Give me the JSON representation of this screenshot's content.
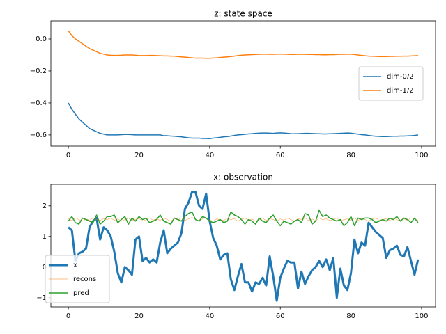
{
  "chart_data": [
    {
      "type": "line",
      "title": "z: state space",
      "x": [
        0,
        1,
        2,
        3,
        4,
        5,
        6,
        7,
        8,
        9,
        10,
        11,
        12,
        13,
        14,
        15,
        16,
        17,
        18,
        19,
        20,
        21,
        22,
        23,
        24,
        25,
        26,
        27,
        28,
        29,
        30,
        31,
        32,
        33,
        34,
        35,
        36,
        37,
        38,
        39,
        40,
        41,
        42,
        43,
        44,
        45,
        46,
        47,
        48,
        49,
        50,
        51,
        52,
        53,
        54,
        55,
        56,
        57,
        58,
        59,
        60,
        61,
        62,
        63,
        64,
        65,
        66,
        67,
        68,
        69,
        70,
        71,
        72,
        73,
        74,
        75,
        76,
        77,
        78,
        79,
        80,
        81,
        82,
        83,
        84,
        85,
        86,
        87,
        88,
        89,
        90,
        91,
        92,
        93,
        94,
        95,
        96,
        97,
        98,
        99
      ],
      "series": [
        {
          "name": "dim-0/2",
          "color": "#1f77b4",
          "linewidth": 1.5,
          "values": [
            -0.4,
            -0.44,
            -0.47,
            -0.5,
            -0.52,
            -0.54,
            -0.56,
            -0.57,
            -0.58,
            -0.59,
            -0.595,
            -0.6,
            -0.6,
            -0.6,
            -0.6,
            -0.598,
            -0.597,
            -0.597,
            -0.598,
            -0.6,
            -0.6,
            -0.6,
            -0.6,
            -0.6,
            -0.6,
            -0.6,
            -0.6,
            -0.605,
            -0.605,
            -0.607,
            -0.608,
            -0.61,
            -0.612,
            -0.615,
            -0.618,
            -0.62,
            -0.62,
            -0.62,
            -0.622,
            -0.622,
            -0.623,
            -0.62,
            -0.618,
            -0.615,
            -0.612,
            -0.61,
            -0.607,
            -0.603,
            -0.6,
            -0.598,
            -0.596,
            -0.594,
            -0.592,
            -0.59,
            -0.589,
            -0.588,
            -0.588,
            -0.589,
            -0.59,
            -0.588,
            -0.587,
            -0.588,
            -0.59,
            -0.592,
            -0.593,
            -0.592,
            -0.591,
            -0.59,
            -0.59,
            -0.591,
            -0.592,
            -0.593,
            -0.594,
            -0.594,
            -0.593,
            -0.592,
            -0.591,
            -0.59,
            -0.589,
            -0.588,
            -0.589,
            -0.592,
            -0.595,
            -0.598,
            -0.6,
            -0.603,
            -0.606,
            -0.608,
            -0.609,
            -0.61,
            -0.61,
            -0.609,
            -0.608,
            -0.608,
            -0.607,
            -0.607,
            -0.606,
            -0.605,
            -0.603,
            -0.6
          ]
        },
        {
          "name": "dim-1/2",
          "color": "#ff7f0e",
          "linewidth": 1.5,
          "values": [
            0.05,
            0.02,
            0.0,
            -0.015,
            -0.03,
            -0.045,
            -0.06,
            -0.07,
            -0.08,
            -0.09,
            -0.095,
            -0.1,
            -0.102,
            -0.103,
            -0.103,
            -0.102,
            -0.1,
            -0.1,
            -0.1,
            -0.102,
            -0.104,
            -0.104,
            -0.104,
            -0.103,
            -0.103,
            -0.104,
            -0.105,
            -0.106,
            -0.106,
            -0.107,
            -0.108,
            -0.11,
            -0.112,
            -0.114,
            -0.116,
            -0.118,
            -0.12,
            -0.12,
            -0.12,
            -0.121,
            -0.121,
            -0.119,
            -0.118,
            -0.116,
            -0.114,
            -0.112,
            -0.11,
            -0.107,
            -0.104,
            -0.102,
            -0.1,
            -0.099,
            -0.098,
            -0.097,
            -0.096,
            -0.095,
            -0.095,
            -0.096,
            -0.096,
            -0.095,
            -0.094,
            -0.095,
            -0.096,
            -0.097,
            -0.097,
            -0.096,
            -0.096,
            -0.096,
            -0.097,
            -0.097,
            -0.098,
            -0.098,
            -0.099,
            -0.099,
            -0.098,
            -0.098,
            -0.097,
            -0.096,
            -0.096,
            -0.095,
            -0.095,
            -0.097,
            -0.1,
            -0.103,
            -0.105,
            -0.107,
            -0.108,
            -0.109,
            -0.11,
            -0.11,
            -0.11,
            -0.109,
            -0.109,
            -0.108,
            -0.108,
            -0.107,
            -0.107,
            -0.106,
            -0.105,
            -0.104
          ]
        }
      ],
      "xlim": [
        -4.95,
        103.95
      ],
      "xticks": [
        0,
        20,
        40,
        60,
        80,
        100
      ],
      "ylim": [
        -0.67,
        0.113
      ],
      "yticks": [
        {
          "value": -0.6,
          "label": "−0.6"
        },
        {
          "value": -0.4,
          "label": "−0.4"
        },
        {
          "value": -0.2,
          "label": "−0.2"
        },
        {
          "value": 0.0,
          "label": "0.0"
        }
      ],
      "legend": "center right"
    },
    {
      "type": "line",
      "title": "x: observation",
      "x": [
        0,
        1,
        2,
        3,
        4,
        5,
        6,
        7,
        8,
        9,
        10,
        11,
        12,
        13,
        14,
        15,
        16,
        17,
        18,
        19,
        20,
        21,
        22,
        23,
        24,
        25,
        26,
        27,
        28,
        29,
        30,
        31,
        32,
        33,
        34,
        35,
        36,
        37,
        38,
        39,
        40,
        41,
        42,
        43,
        44,
        45,
        46,
        47,
        48,
        49,
        50,
        51,
        52,
        53,
        54,
        55,
        56,
        57,
        58,
        59,
        60,
        61,
        62,
        63,
        64,
        65,
        66,
        67,
        68,
        69,
        70,
        71,
        72,
        73,
        74,
        75,
        76,
        77,
        78,
        79,
        80,
        81,
        82,
        83,
        84,
        85,
        86,
        87,
        88,
        89,
        90,
        91,
        92,
        93,
        94,
        95,
        96,
        97,
        98,
        99
      ],
      "series": [
        {
          "name": "x",
          "color": "#1f77b4",
          "linewidth": 3,
          "values": [
            1.3,
            1.2,
            0.2,
            0.45,
            0.5,
            0.6,
            1.3,
            1.5,
            1.6,
            0.9,
            1.3,
            1.2,
            1.0,
            0.5,
            -0.2,
            -0.5,
            0.0,
            -0.1,
            -0.25,
            0.9,
            1.0,
            0.2,
            0.3,
            0.15,
            0.25,
            0.15,
            0.8,
            1.2,
            0.45,
            0.6,
            0.7,
            0.8,
            1.1,
            1.9,
            2.1,
            2.45,
            2.45,
            2.0,
            1.9,
            2.4,
            1.5,
            0.95,
            0.7,
            0.25,
            0.4,
            0.45,
            -0.4,
            -0.75,
            -0.3,
            0.1,
            -0.5,
            -0.5,
            -0.8,
            -0.5,
            -0.55,
            -0.35,
            -0.6,
            0.35,
            -0.3,
            -1.1,
            -0.35,
            -0.05,
            0.2,
            0.15,
            0.15,
            -0.7,
            -0.15,
            -0.55,
            -0.3,
            -0.1,
            0.0,
            0.2,
            0.0,
            0.25,
            -0.1,
            0.3,
            -1.0,
            -0.05,
            -0.6,
            -0.75,
            -0.2,
            0.9,
            0.45,
            0.8,
            0.7,
            1.45,
            1.3,
            1.15,
            1.05,
            0.95,
            0.3,
            0.55,
            0.6,
            0.7,
            0.4,
            0.35,
            0.65,
            0.2,
            -0.25,
            0.25
          ]
        },
        {
          "name": "recons",
          "color": "#ff7f0e",
          "linewidth": 0.5,
          "values": [
            1.58,
            1.52,
            1.6,
            1.55,
            1.5,
            1.57,
            1.53,
            1.6,
            1.55,
            1.52,
            1.58,
            1.55,
            1.6,
            1.53,
            1.57,
            1.5,
            1.55,
            1.6,
            1.52,
            1.56,
            1.58,
            1.5,
            1.55,
            1.6,
            1.53,
            1.57,
            1.52,
            1.6,
            1.55,
            1.5,
            1.58,
            1.54,
            1.6,
            1.52,
            1.57,
            1.62,
            1.55,
            1.5,
            1.58,
            1.6,
            1.53,
            1.5,
            1.57,
            1.55,
            1.52,
            1.6,
            1.55,
            1.58,
            1.5,
            1.56,
            1.6,
            1.53,
            1.57,
            1.5,
            1.55,
            1.6,
            1.52,
            1.58,
            1.55,
            1.5,
            1.57,
            1.53,
            1.6,
            1.55,
            1.5,
            1.58,
            1.55,
            1.6,
            1.52,
            1.57,
            1.5,
            1.6,
            1.55,
            1.58,
            1.52,
            1.56,
            1.6,
            1.5,
            1.55,
            1.57,
            1.53,
            1.6,
            1.52,
            1.58,
            1.55,
            1.5,
            1.57,
            1.6,
            1.53,
            1.55,
            1.58,
            1.52,
            1.6,
            1.55,
            1.5,
            1.57,
            1.53,
            1.6,
            1.58,
            1.52
          ]
        },
        {
          "name": "pred",
          "color": "#2ca02c",
          "linewidth": 1.5,
          "values": [
            1.5,
            1.65,
            1.45,
            1.4,
            1.6,
            1.55,
            1.5,
            1.45,
            1.7,
            1.4,
            1.5,
            1.65,
            1.65,
            1.7,
            1.45,
            1.55,
            1.65,
            1.4,
            1.6,
            1.5,
            1.65,
            1.55,
            1.6,
            1.45,
            1.5,
            1.55,
            1.7,
            1.5,
            1.45,
            1.4,
            1.6,
            1.55,
            1.5,
            1.65,
            1.75,
            1.8,
            1.55,
            1.5,
            1.65,
            1.6,
            1.5,
            1.45,
            1.5,
            1.55,
            1.45,
            1.5,
            1.8,
            1.7,
            1.65,
            1.55,
            1.4,
            1.55,
            1.5,
            1.4,
            1.6,
            1.5,
            1.45,
            1.6,
            1.7,
            1.5,
            1.35,
            1.5,
            1.45,
            1.4,
            1.5,
            1.55,
            1.45,
            1.75,
            1.7,
            1.4,
            1.5,
            1.85,
            1.65,
            1.7,
            1.6,
            1.55,
            1.5,
            1.55,
            1.35,
            1.45,
            1.65,
            1.35,
            1.6,
            1.55,
            1.6,
            1.6,
            1.55,
            1.45,
            1.5,
            1.55,
            1.5,
            1.6,
            1.55,
            1.65,
            1.5,
            1.6,
            1.55,
            1.45,
            1.6,
            1.45
          ]
        }
      ],
      "xlim": [
        -4.95,
        103.95
      ],
      "xticks": [
        0,
        20,
        40,
        60,
        80,
        100
      ],
      "ylim": [
        -1.3,
        2.7
      ],
      "yticks": [
        {
          "value": -1,
          "label": "−1"
        },
        0,
        1,
        2
      ],
      "legend": "lower left"
    }
  ]
}
